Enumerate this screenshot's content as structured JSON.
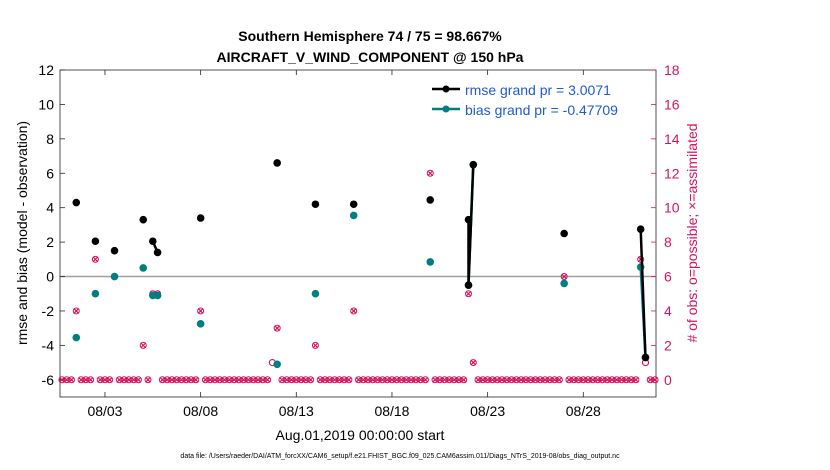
{
  "colors": {
    "rmse": "#000000",
    "bias": "#007f80",
    "obs": "#d6135d",
    "legend_text": "#1f5ad6",
    "zero_line": "#a0a0a0"
  },
  "chart_data": {
    "type": "line",
    "title": [
      "Southern Hemisphere 74 / 75 = 98.667%",
      "AIRCRAFT_V_WIND_COMPONENT @ 150 hPa"
    ],
    "xlabel": "Aug.01,2019 00:00:00 start",
    "ylabel": "rmse and bias (model - observation)",
    "y2label": "# of obs: o=possible; ×=assimilated",
    "footer": "data file: /Users/raeder/DAI/ATM_forcXX/CAM6_setup/f.e21.FHIST_BGC.f09_025.CAM6assim.011/Diags_NTrS_2019-08/obs_diag_output.nc",
    "xlim": [
      0.65,
      31.8
    ],
    "ylim": [
      -7,
      12
    ],
    "y2lim": [
      -1,
      18
    ],
    "xticks": [
      3,
      8,
      13,
      18,
      23,
      28
    ],
    "xticklabels": [
      "08/03",
      "08/08",
      "08/13",
      "08/18",
      "08/23",
      "08/28"
    ],
    "yticks": [
      -6,
      -4,
      -2,
      0,
      2,
      4,
      6,
      8,
      10,
      12
    ],
    "y2ticks": [
      0,
      2,
      4,
      6,
      8,
      10,
      12,
      14,
      16,
      18
    ],
    "legend": [
      "rmse grand pr = 3.0071",
      "bias grand pr = -0.47709"
    ],
    "legend_loc": "top-right",
    "series": [
      {
        "name": "rmse",
        "points": [
          [
            1.5,
            4.3
          ],
          [
            2.5,
            2.05
          ],
          [
            3.5,
            1.5
          ],
          [
            5.0,
            3.3
          ],
          [
            5.5,
            2.05
          ],
          [
            5.75,
            1.4
          ],
          [
            8.0,
            3.4
          ],
          [
            12.0,
            6.6
          ],
          [
            14.0,
            4.2
          ],
          [
            16.0,
            4.2
          ],
          [
            20.0,
            4.45
          ],
          [
            22.0,
            3.3
          ],
          [
            22.0,
            -0.5
          ],
          [
            22.25,
            6.5
          ],
          [
            27.0,
            2.5
          ],
          [
            31.0,
            2.75
          ],
          [
            31.25,
            -4.7
          ]
        ],
        "connect": [
          [
            4,
            5
          ],
          [
            11,
            12
          ],
          [
            12,
            13
          ],
          [
            15,
            16
          ]
        ]
      },
      {
        "name": "bias",
        "points": [
          [
            1.5,
            -3.55
          ],
          [
            2.5,
            -1.0
          ],
          [
            3.5,
            0.0
          ],
          [
            5.0,
            0.5
          ],
          [
            5.5,
            -1.1
          ],
          [
            5.75,
            -1.1
          ],
          [
            8.0,
            -2.75
          ],
          [
            12.0,
            -5.1
          ],
          [
            14.0,
            -1.0
          ],
          [
            16.0,
            3.55
          ],
          [
            20.0,
            0.85
          ],
          [
            22.0,
            -0.5
          ],
          [
            22.25,
            6.5
          ],
          [
            27.0,
            -0.4
          ],
          [
            31.0,
            0.55
          ],
          [
            31.25,
            -4.7
          ]
        ],
        "connect": [
          [
            11,
            12
          ],
          [
            14,
            15
          ]
        ]
      },
      {
        "name": "obs_count",
        "x": [
          0.75,
          1.0,
          1.25,
          1.5,
          1.75,
          2.0,
          2.25,
          2.5,
          2.75,
          3.0,
          3.25,
          3.5,
          3.75,
          4.0,
          4.25,
          4.5,
          4.75,
          5.0,
          5.25,
          5.5,
          5.75,
          6.0,
          6.25,
          6.5,
          6.75,
          7.0,
          7.25,
          7.5,
          7.75,
          8.0,
          8.25,
          8.5,
          8.75,
          9.0,
          9.25,
          9.5,
          9.75,
          10.0,
          10.25,
          10.5,
          10.75,
          11.0,
          11.25,
          11.5,
          11.75,
          12.0,
          12.25,
          12.5,
          12.75,
          13.0,
          13.25,
          13.5,
          13.75,
          14.0,
          14.25,
          14.5,
          14.75,
          15.0,
          15.25,
          15.5,
          15.75,
          16.0,
          16.25,
          16.5,
          16.75,
          17.0,
          17.25,
          17.5,
          17.75,
          18.0,
          18.25,
          18.5,
          18.75,
          19.0,
          19.25,
          19.5,
          19.75,
          20.0,
          20.25,
          20.5,
          20.75,
          21.0,
          21.25,
          21.5,
          21.75,
          22.0,
          22.25,
          22.5,
          22.75,
          23.0,
          23.25,
          23.5,
          23.75,
          24.0,
          24.25,
          24.5,
          24.75,
          25.0,
          25.25,
          25.5,
          25.75,
          26.0,
          26.25,
          26.5,
          26.75,
          27.0,
          27.25,
          27.5,
          27.75,
          28.0,
          28.25,
          28.5,
          28.75,
          29.0,
          29.25,
          29.5,
          29.75,
          30.0,
          30.25,
          30.5,
          30.75,
          31.0,
          31.25,
          31.5,
          31.75
        ],
        "values": [
          0,
          0,
          0,
          4,
          0,
          0,
          0,
          7,
          0,
          0,
          0,
          6,
          0,
          0,
          0,
          0,
          0,
          2,
          0,
          5,
          5,
          0,
          0,
          0,
          0,
          0,
          0,
          0,
          0,
          4,
          0,
          0,
          0,
          0,
          0,
          0,
          0,
          0,
          0,
          0,
          0,
          0,
          0,
          0,
          1,
          3,
          0,
          0,
          0,
          0,
          0,
          0,
          0,
          2,
          0,
          0,
          0,
          0,
          0,
          0,
          0,
          4,
          0,
          0,
          0,
          0,
          0,
          0,
          0,
          0,
          0,
          0,
          0,
          0,
          0,
          0,
          0,
          12,
          0,
          0,
          0,
          0,
          0,
          0,
          0,
          5,
          1,
          0,
          0,
          0,
          0,
          0,
          0,
          0,
          0,
          0,
          0,
          0,
          0,
          0,
          0,
          0,
          0,
          0,
          0,
          6,
          0,
          0,
          0,
          0,
          0,
          0,
          0,
          0,
          0,
          0,
          0,
          0,
          0,
          0,
          0,
          7,
          1,
          0,
          0
        ],
        "special_possible": [
          [
            11.75,
            1
          ],
          [
            31.25,
            1
          ]
        ]
      }
    ]
  }
}
